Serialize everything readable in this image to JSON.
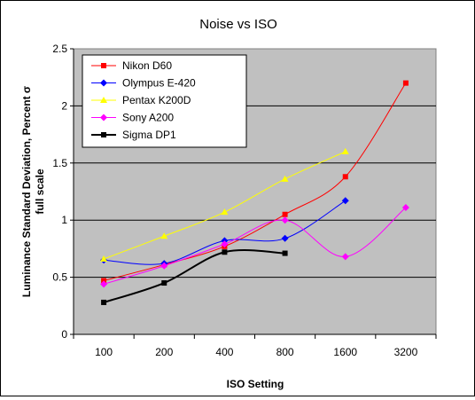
{
  "chart_data": {
    "type": "line",
    "title": "Noise vs ISO",
    "xlabel": "ISO Setting",
    "ylabel_lines": [
      "Luminance Standard Deviation, Percent σ",
      "full scale"
    ],
    "categories": [
      "100",
      "200",
      "400",
      "800",
      "1600",
      "3200"
    ],
    "ylim": [
      0,
      2.5
    ],
    "yticks": [
      0,
      0.5,
      1,
      1.5,
      2,
      2.5
    ],
    "ytick_labels": [
      "0",
      "0.5",
      "1",
      "1.5",
      "2",
      "2.5"
    ],
    "grid": "horizontal",
    "legend_position": "top-left",
    "plot_background": "#c0c0c0",
    "series": [
      {
        "name": "Nikon D60",
        "color": "#ff0000",
        "marker": "square",
        "line_width": 1,
        "values": [
          0.47,
          0.61,
          0.77,
          1.05,
          1.38,
          2.2
        ]
      },
      {
        "name": "Olympus E-420",
        "color": "#0000ff",
        "marker": "diamond",
        "line_width": 1,
        "values": [
          0.65,
          0.62,
          0.82,
          0.84,
          1.17,
          null
        ]
      },
      {
        "name": "Pentax K200D",
        "color": "#ffff00",
        "marker": "triangle",
        "line_width": 1,
        "values": [
          0.66,
          0.86,
          1.07,
          1.36,
          1.6,
          null
        ]
      },
      {
        "name": "Sony A200",
        "color": "#ff00ff",
        "marker": "diamond",
        "line_width": 1,
        "values": [
          0.44,
          0.6,
          0.79,
          1.0,
          0.68,
          1.11
        ]
      },
      {
        "name": "Sigma DP1",
        "color": "#000000",
        "marker": "square",
        "line_width": 2,
        "values": [
          0.28,
          0.45,
          0.72,
          0.71,
          null,
          null
        ]
      }
    ]
  }
}
